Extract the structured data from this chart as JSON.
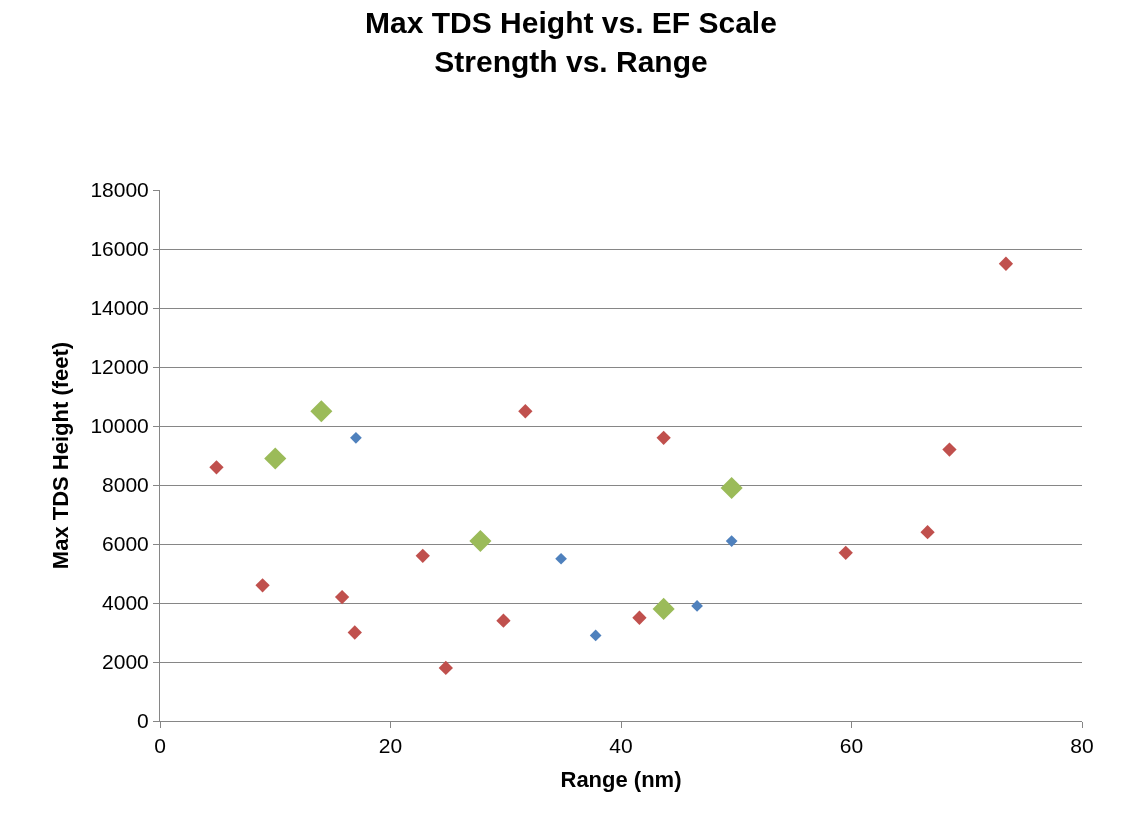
{
  "chart_data": {
    "type": "scatter",
    "title": "Max TDS Height vs. EF Scale\nStrength vs. Range",
    "xlabel": "Range (nm)",
    "ylabel": "Max TDS Height (feet)",
    "xlim": [
      0,
      80
    ],
    "xticks": [
      0,
      20,
      40,
      60,
      80
    ],
    "ylim": [
      0,
      18000
    ],
    "yticks": [
      0,
      2000,
      4000,
      6000,
      8000,
      10000,
      12000,
      14000,
      16000,
      18000
    ],
    "grid": "y",
    "marker": "diamond",
    "series": [
      {
        "color": "#4f81bd",
        "x": [
          17,
          34.8,
          37.8,
          46.6,
          49.6
        ],
        "values": [
          9600,
          5500,
          2900,
          3900,
          6100
        ]
      },
      {
        "color": "#c0504d",
        "x": [
          4.9,
          8.9,
          15.8,
          16.9,
          22.8,
          24.8,
          29.8,
          31.7,
          41.6,
          43.7,
          59.5,
          66.6,
          68.5,
          73.4
        ],
        "values": [
          8600,
          4600,
          4200,
          3000,
          5600,
          1800,
          3400,
          10500,
          3500,
          9600,
          5700,
          6400,
          9200,
          15500
        ]
      },
      {
        "color": "#9bbb59",
        "x": [
          10,
          14,
          27.8,
          43.7,
          49.6
        ],
        "values": [
          8900,
          10500,
          6100,
          3800,
          7900
        ]
      }
    ]
  }
}
